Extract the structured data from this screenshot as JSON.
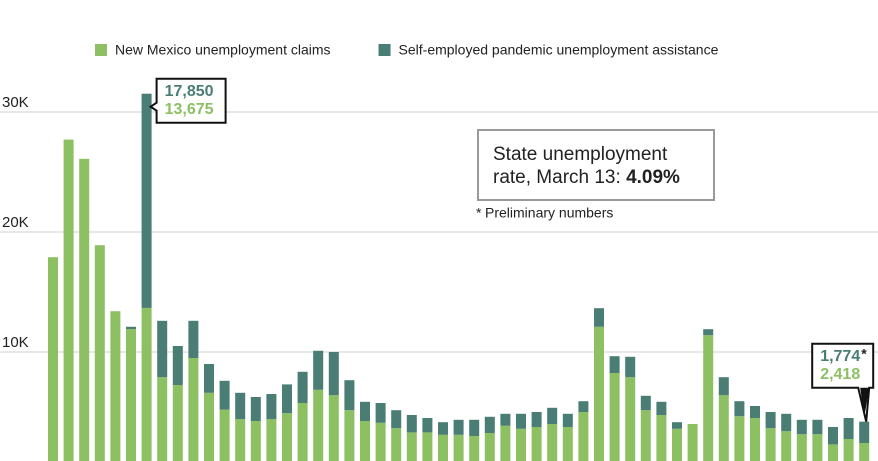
{
  "chart_data": {
    "type": "stacked-bar",
    "categories": [
      null,
      null,
      null,
      null,
      null,
      null,
      null,
      null,
      null,
      null,
      null,
      null,
      null,
      null,
      null,
      null,
      null,
      null,
      null,
      null,
      null,
      null,
      null,
      null,
      null,
      null,
      null,
      null,
      null,
      null,
      null,
      null,
      null,
      null,
      null,
      null,
      null,
      null,
      null,
      null,
      null,
      null,
      null,
      null,
      null,
      null,
      null,
      null,
      null,
      null,
      null,
      null,
      null
    ],
    "series": [
      {
        "name": "New Mexico unemployment claims",
        "color": "#8dc063",
        "values": [
          17900,
          27700,
          26100,
          18900,
          13400,
          11900,
          13675,
          7900,
          7250,
          9500,
          6600,
          5200,
          4400,
          4250,
          4400,
          4900,
          5750,
          6850,
          6400,
          5150,
          4250,
          4100,
          3650,
          3300,
          3300,
          3100,
          3100,
          3000,
          3250,
          3850,
          3600,
          3750,
          4000,
          3750,
          5000,
          12100,
          8250,
          7900,
          5150,
          4750,
          3600,
          4000,
          11400,
          6400,
          4650,
          4500,
          3650,
          3400,
          3150,
          3150,
          2300,
          2750,
          2418
        ],
        "value_labels": [
          null,
          null,
          null,
          null,
          null,
          null,
          "13,675",
          null,
          null,
          null,
          null,
          null,
          null,
          null,
          null,
          null,
          null,
          null,
          null,
          null,
          null,
          null,
          null,
          null,
          null,
          null,
          null,
          null,
          null,
          null,
          null,
          null,
          null,
          null,
          null,
          null,
          null,
          null,
          null,
          null,
          null,
          null,
          null,
          null,
          null,
          null,
          null,
          null,
          null,
          null,
          null,
          null,
          "2,418"
        ]
      },
      {
        "name": "Self-employed pandemic unemployment assistance",
        "color": "#4a7d74",
        "values": [
          0,
          0,
          0,
          0,
          0,
          200,
          17850,
          4700,
          3250,
          3100,
          2400,
          2400,
          2200,
          2000,
          2100,
          2400,
          2600,
          3250,
          3600,
          2500,
          1600,
          1650,
          1500,
          1450,
          1200,
          1050,
          1250,
          1350,
          1350,
          1000,
          1250,
          1250,
          1350,
          1100,
          900,
          1550,
          1400,
          1700,
          1200,
          1100,
          550,
          0,
          500,
          1500,
          1250,
          1000,
          1350,
          1450,
          1200,
          1200,
          1450,
          1750,
          1774
        ],
        "value_labels": [
          null,
          null,
          null,
          null,
          null,
          null,
          "17,850",
          null,
          null,
          null,
          null,
          null,
          null,
          null,
          null,
          null,
          null,
          null,
          null,
          null,
          null,
          null,
          null,
          null,
          null,
          null,
          null,
          null,
          null,
          null,
          null,
          null,
          null,
          null,
          null,
          null,
          null,
          null,
          null,
          null,
          null,
          null,
          null,
          null,
          null,
          null,
          null,
          null,
          null,
          null,
          null,
          null,
          "1,774"
        ]
      }
    ],
    "ylim": [
      0,
      35000
    ],
    "yticks": [
      {
        "value": 10000,
        "label": "10K"
      },
      {
        "value": 20000,
        "label": "20K"
      },
      {
        "value": 30000,
        "label": "30K"
      }
    ],
    "grid": true,
    "legend": "top",
    "annotations": {
      "rate_text": "State unemployment",
      "rate_text_2": "rate, March 13:",
      "rate_value": "4.09%",
      "asterisk": "*",
      "note": "Preliminary numbers"
    }
  }
}
